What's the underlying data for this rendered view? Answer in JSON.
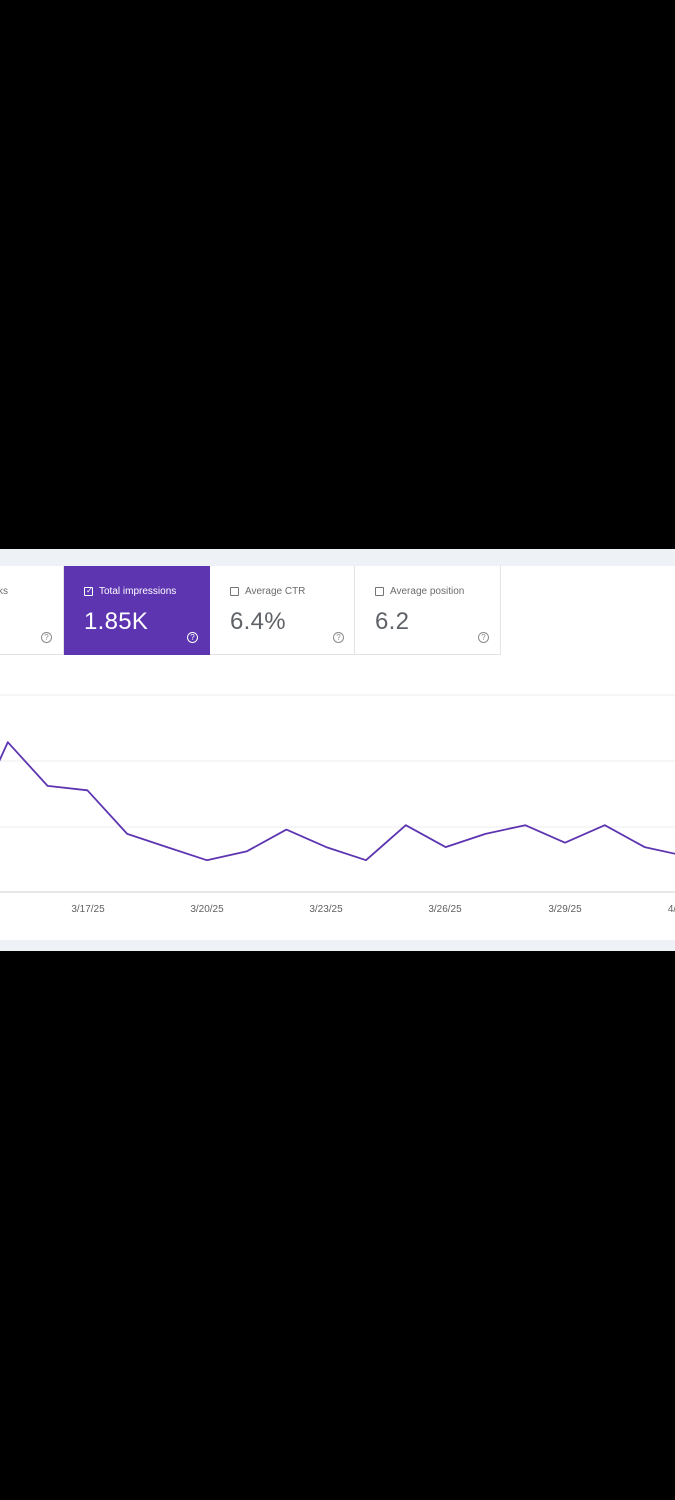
{
  "cards": {
    "clicks": {
      "label_fragment": "ks"
    },
    "impressions": {
      "label": "Total impressions",
      "value": "1.85K",
      "checked": true,
      "color": "#5e35b1"
    },
    "ctr": {
      "label": "Average CTR",
      "value": "6.4%",
      "checked": false
    },
    "position": {
      "label": "Average position",
      "value": "6.2",
      "checked": false
    }
  },
  "help_icon": "help-circle-icon",
  "chart_data": {
    "type": "line",
    "series": [
      {
        "color": "#5e35b1",
        "values": [
          92,
          112,
          102,
          101,
          91,
          88,
          85,
          87,
          92,
          88,
          85,
          93,
          88,
          91,
          93,
          89,
          93,
          88,
          86
        ]
      }
    ],
    "x_tick_labels": [
      "3/17/25",
      "3/20/25",
      "3/23/25",
      "3/26/25",
      "3/29/25",
      "4/"
    ],
    "grid": true
  }
}
